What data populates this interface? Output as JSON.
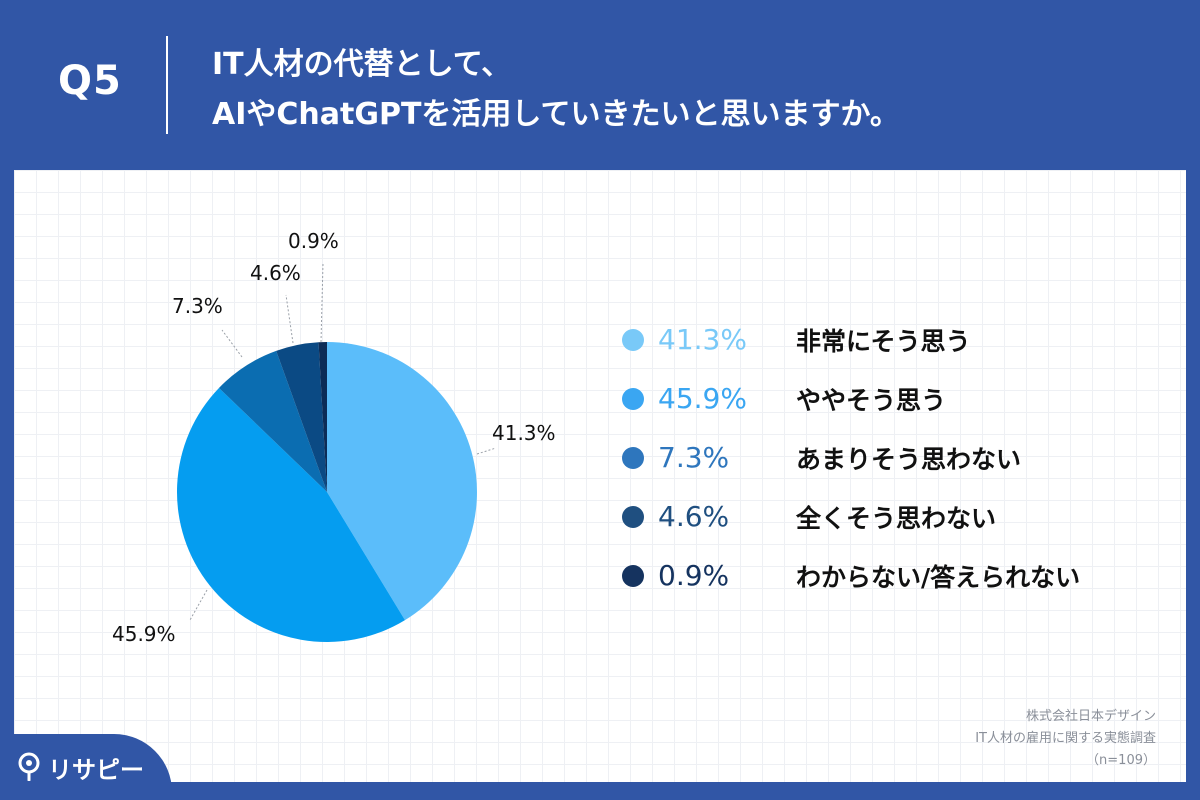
{
  "header": {
    "question_no": "Q5",
    "title_line1": "IT人材の代替として、",
    "title_line2": "AIやChatGPTを活用していきたいと思いますか。"
  },
  "chart_data": {
    "type": "pie",
    "title": "IT人材の代替として、AIやChatGPTを活用していきたいと思いますか。",
    "slices": [
      {
        "label": "非常にそう思う",
        "value": 41.3,
        "display": "41.3%",
        "color": "#5bbdfa",
        "legend_color": "#79c9f8"
      },
      {
        "label": "ややそう思う",
        "value": 45.9,
        "display": "45.9%",
        "color": "#059df0",
        "legend_color": "#3aa6f2"
      },
      {
        "label": "あまりそう思わない",
        "value": 7.3,
        "display": "7.3%",
        "color": "#0b6db1",
        "legend_color": "#2e76bd"
      },
      {
        "label": "全くそう思わない",
        "value": 4.6,
        "display": "4.6%",
        "color": "#0b4a84",
        "legend_color": "#1f4f80"
      },
      {
        "label": "わからない/答えられない",
        "value": 0.9,
        "display": "0.9%",
        "color": "#0c2c57",
        "legend_color": "#15335f"
      }
    ]
  },
  "credit": {
    "company": "株式会社日本デザイン",
    "survey": "IT人材の雇用に関する実態調査",
    "sample": "（n=109）"
  },
  "brand": {
    "name": "リサピー"
  }
}
